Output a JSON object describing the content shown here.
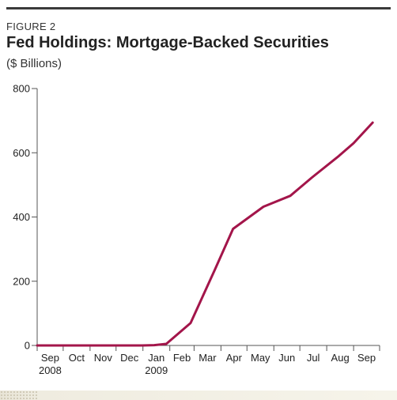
{
  "header": {
    "figure_label": "FIGURE 2",
    "title": "Fed Holdings: Mortgage-Backed Securities",
    "subtitle": "($ Billions)"
  },
  "chart_data": {
    "type": "line",
    "title": "Fed Holdings: Mortgage-Backed Securities",
    "ylabel": "($ Billions)",
    "xlabel": "",
    "ylim": [
      0,
      800
    ],
    "yticks": [
      0,
      200,
      400,
      600,
      800
    ],
    "xlim": [
      "2008-09-01",
      "2009-10-01"
    ],
    "x_tick_labels": [
      {
        "date": "2008-09-01",
        "label": "Sep",
        "year": "2008"
      },
      {
        "date": "2008-10-01",
        "label": "Oct",
        "year": ""
      },
      {
        "date": "2008-11-01",
        "label": "Nov",
        "year": ""
      },
      {
        "date": "2008-12-01",
        "label": "Dec",
        "year": ""
      },
      {
        "date": "2009-01-01",
        "label": "Jan",
        "year": "2009"
      },
      {
        "date": "2009-02-01",
        "label": "Feb",
        "year": ""
      },
      {
        "date": "2009-03-01",
        "label": "Mar",
        "year": ""
      },
      {
        "date": "2009-04-01",
        "label": "Apr",
        "year": ""
      },
      {
        "date": "2009-05-01",
        "label": "May",
        "year": ""
      },
      {
        "date": "2009-06-01",
        "label": "Jun",
        "year": ""
      },
      {
        "date": "2009-07-01",
        "label": "Jul",
        "year": ""
      },
      {
        "date": "2009-08-01",
        "label": "Aug",
        "year": ""
      },
      {
        "date": "2009-09-01",
        "label": "Sep",
        "year": ""
      }
    ],
    "series": [
      {
        "color": "#a3154a",
        "points": [
          {
            "x": "2008-09-01",
            "y": 0
          },
          {
            "x": "2008-10-15",
            "y": 0
          },
          {
            "x": "2008-12-01",
            "y": 0
          },
          {
            "x": "2008-12-31",
            "y": 0
          },
          {
            "x": "2009-01-14",
            "y": 1
          },
          {
            "x": "2009-01-28",
            "y": 5
          },
          {
            "x": "2009-02-25",
            "y": 70
          },
          {
            "x": "2009-03-25",
            "y": 236
          },
          {
            "x": "2009-04-15",
            "y": 363
          },
          {
            "x": "2009-05-20",
            "y": 432
          },
          {
            "x": "2009-06-20",
            "y": 466
          },
          {
            "x": "2009-07-15",
            "y": 523
          },
          {
            "x": "2009-08-15",
            "y": 590
          },
          {
            "x": "2009-09-01",
            "y": 630
          },
          {
            "x": "2009-09-23",
            "y": 694
          }
        ]
      }
    ],
    "grid": false,
    "legend": "none"
  }
}
